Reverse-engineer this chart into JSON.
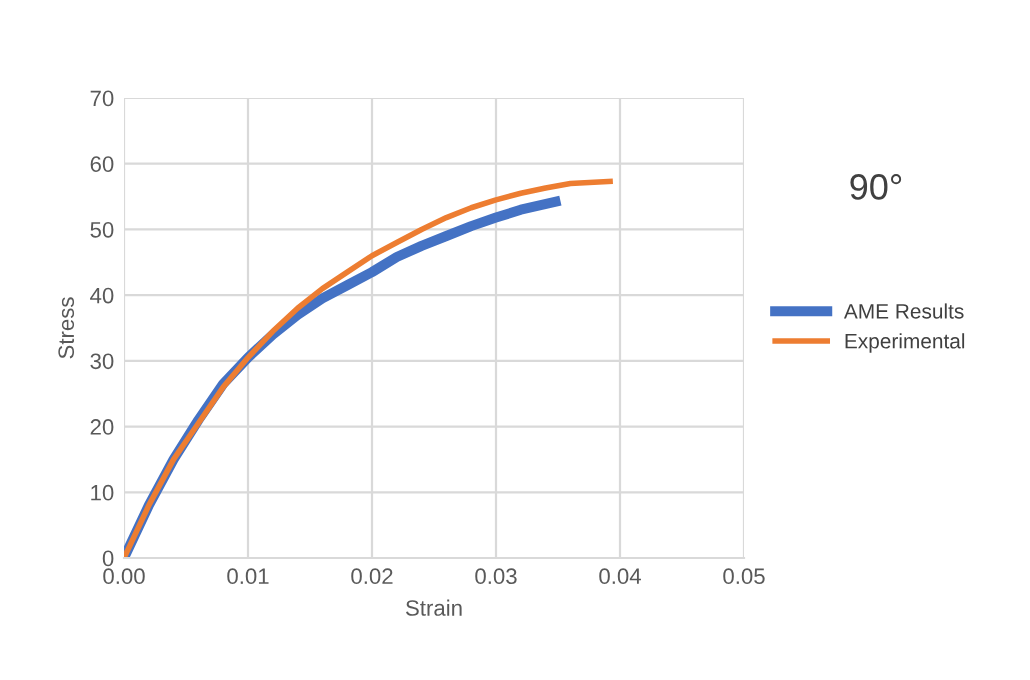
{
  "chart_data": {
    "type": "line",
    "xlabel": "Strain",
    "ylabel": "Stress",
    "annotations": [
      "90°"
    ],
    "xlim": [
      0,
      0.05
    ],
    "xticks": [
      {
        "value": 0,
        "label": "0.00"
      },
      {
        "value": 0.01,
        "label": "0.01"
      },
      {
        "value": 0.02,
        "label": "0.02"
      },
      {
        "value": 0.03,
        "label": "0.03"
      },
      {
        "value": 0.04,
        "label": "0.04"
      },
      {
        "value": 0.05,
        "label": "0.05"
      }
    ],
    "ylim": [
      0,
      70
    ],
    "yticks": [
      0,
      10,
      20,
      30,
      40,
      50,
      60,
      70
    ],
    "grid": true,
    "legend": "right",
    "marker": "none",
    "line_style": "solid",
    "series": [
      {
        "name": "AME Results",
        "color": "#4472c4",
        "x": [
          0,
          0.002,
          0.004,
          0.006,
          0.008,
          0.01,
          0.012,
          0.014,
          0.016,
          0.018,
          0.02,
          0.022,
          0.024,
          0.026,
          0.028,
          0.03,
          0.032,
          0.0348
        ],
        "values": [
          0,
          8,
          15,
          21,
          26.5,
          30.5,
          34,
          37,
          39.5,
          41.5,
          43.5,
          45.8,
          47.5,
          49,
          50.5,
          51.8,
          53,
          54.2
        ]
      },
      {
        "name": "Experimental",
        "color": "#ed7d31",
        "x": [
          0,
          0.002,
          0.004,
          0.006,
          0.008,
          0.01,
          0.012,
          0.014,
          0.016,
          0.018,
          0.02,
          0.022,
          0.024,
          0.026,
          0.028,
          0.03,
          0.032,
          0.034,
          0.036,
          0.0392
        ],
        "values": [
          0,
          8,
          15,
          20.5,
          26,
          30.5,
          34.5,
          38,
          41,
          43.5,
          46,
          48,
          50,
          51.8,
          53.3,
          54.5,
          55.5,
          56.3,
          57,
          57.3
        ]
      }
    ]
  }
}
